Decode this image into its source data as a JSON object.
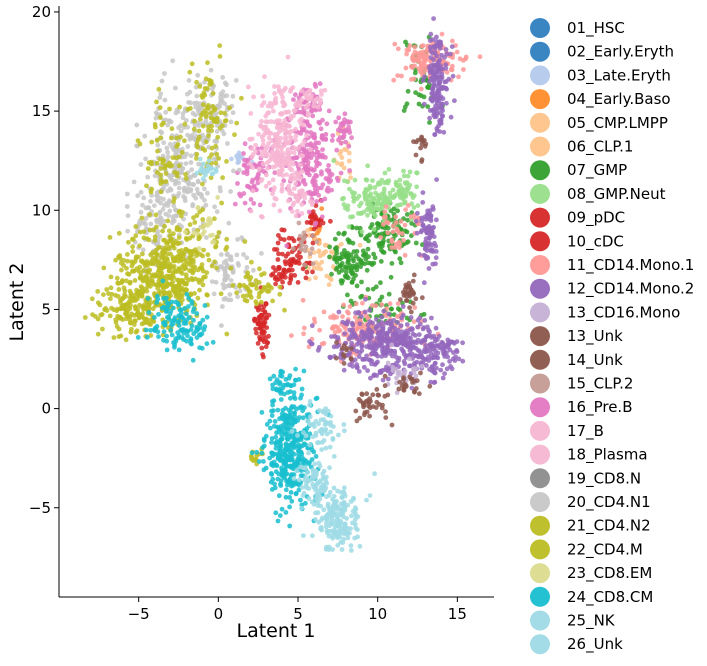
{
  "chart_data": {
    "type": "scatter",
    "title": "",
    "xlabel": "Latent 1",
    "ylabel": "Latent 2",
    "xlim": [
      -10,
      17.3
    ],
    "ylim": [
      -9.5,
      20.3
    ],
    "xticks": [
      -5,
      0,
      5,
      10,
      15
    ],
    "yticks": [
      -5,
      0,
      5,
      10,
      15,
      20
    ],
    "grid": false,
    "legend_position": "right",
    "series": [
      {
        "name": "01_HSC",
        "color": "#2f7fc0",
        "clusters": []
      },
      {
        "name": "02_Early.Eryth",
        "color": "#2f7fc0",
        "clusters": []
      },
      {
        "name": "03_Late.Eryth",
        "color": "#b4c9ed",
        "clusters": [
          [
            1.5,
            12.6,
            0.5,
            0.3,
            10
          ]
        ]
      },
      {
        "name": "04_Early.Baso",
        "color": "#ff8c2a",
        "clusters": [
          [
            6.2,
            9.2,
            0.5,
            0.6,
            15
          ]
        ]
      },
      {
        "name": "05_CMP.LMPP",
        "color": "#ffc38a",
        "clusters": [
          [
            6.5,
            7.4,
            0.9,
            0.9,
            40
          ]
        ]
      },
      {
        "name": "06_CLP.1",
        "color": "#ffc38a",
        "clusters": [
          [
            7.8,
            12.8,
            0.3,
            1.0,
            20
          ]
        ]
      },
      {
        "name": "07_GMP",
        "color": "#33a02c",
        "clusters": [
          [
            8.4,
            7.5,
            1.0,
            1.1,
            110
          ],
          [
            10.8,
            9.0,
            1.0,
            1.0,
            100
          ],
          [
            12.7,
            16.4,
            0.6,
            1.6,
            40
          ],
          [
            10.0,
            5.0,
            1.3,
            0.9,
            50
          ]
        ]
      },
      {
        "name": "08_GMP.Neut",
        "color": "#98df8a",
        "clusters": [
          [
            9.9,
            10.6,
            1.2,
            0.8,
            140
          ],
          [
            11.8,
            11.0,
            0.6,
            0.7,
            40
          ]
        ]
      },
      {
        "name": "09_pDC",
        "color": "#d62728",
        "clusters": [
          [
            2.8,
            4.2,
            0.3,
            0.9,
            60
          ],
          [
            4.6,
            7.7,
            0.8,
            1.0,
            60
          ],
          [
            6.2,
            9.6,
            0.5,
            0.5,
            25
          ]
        ]
      },
      {
        "name": "10_cDC",
        "color": "#d62728",
        "clusters": [
          [
            3.9,
            6.8,
            0.6,
            0.6,
            25
          ]
        ]
      },
      {
        "name": "11_CD14.Mono.1",
        "color": "#ff9896",
        "clusters": [
          [
            9.0,
            4.1,
            2.2,
            0.8,
            160
          ],
          [
            13.4,
            17.6,
            1.2,
            0.7,
            120
          ],
          [
            11.5,
            8.9,
            0.9,
            1.0,
            40
          ]
        ]
      },
      {
        "name": "12_CD14.Mono.2",
        "color": "#9467bd",
        "clusters": [
          [
            10.6,
            3.3,
            2.3,
            1.0,
            400
          ],
          [
            13.8,
            16.4,
            0.5,
            1.8,
            160
          ],
          [
            13.1,
            8.8,
            0.4,
            1.2,
            80
          ],
          [
            13.9,
            2.7,
            0.9,
            0.7,
            80
          ]
        ]
      },
      {
        "name": "13_CD16.Mono",
        "color": "#c5b0d5",
        "clusters": [
          [
            11.5,
            1.8,
            0.7,
            0.6,
            30
          ]
        ]
      },
      {
        "name": "13_Unk",
        "color": "#8c564b",
        "clusters": [
          [
            9.6,
            0.3,
            0.8,
            0.6,
            40
          ],
          [
            11.8,
            1.2,
            0.6,
            0.4,
            25
          ],
          [
            12.0,
            5.8,
            0.4,
            0.6,
            30
          ],
          [
            12.7,
            13.3,
            0.3,
            0.5,
            15
          ]
        ]
      },
      {
        "name": "14_Unk",
        "color": "#8c564b",
        "clusters": [
          [
            7.9,
            2.8,
            0.5,
            0.4,
            12
          ]
        ]
      },
      {
        "name": "15_CLP.2",
        "color": "#c49c94",
        "clusters": [
          [
            5.4,
            8.3,
            0.6,
            0.6,
            20
          ]
        ]
      },
      {
        "name": "16_Pre.B",
        "color": "#e377c2",
        "clusters": [
          [
            5.7,
            12.4,
            1.2,
            1.8,
            200
          ],
          [
            7.9,
            14.0,
            0.3,
            0.5,
            30
          ],
          [
            2.3,
            11.8,
            0.8,
            1.1,
            60
          ],
          [
            5.6,
            15.5,
            0.6,
            0.5,
            40
          ]
        ]
      },
      {
        "name": "17_B",
        "color": "#f7b6d2",
        "clusters": [
          [
            3.9,
            13.3,
            1.0,
            1.9,
            250
          ],
          [
            5.8,
            15.6,
            0.6,
            0.5,
            30
          ]
        ]
      },
      {
        "name": "18_Plasma",
        "color": "#f7b6d2",
        "clusters": [
          [
            5.0,
            10.6,
            0.5,
            0.6,
            30
          ]
        ]
      },
      {
        "name": "19_CD8.N",
        "color": "#8c8c8c",
        "clusters": []
      },
      {
        "name": "20_CD4.N1",
        "color": "#c7c7c7",
        "clusters": [
          [
            -2.5,
            12.2,
            1.5,
            2.7,
            260
          ],
          [
            -0.5,
            15.0,
            1.0,
            1.7,
            90
          ],
          [
            0.8,
            6.8,
            0.9,
            1.1,
            70
          ],
          [
            -4.2,
            9.5,
            1.2,
            1.5,
            90
          ]
        ]
      },
      {
        "name": "21_CD4.N2",
        "color": "#bcbd22",
        "clusters": [
          [
            -3.5,
            6.5,
            2.0,
            1.3,
            380
          ],
          [
            -5.5,
            5.0,
            1.5,
            0.9,
            140
          ],
          [
            -0.6,
            14.5,
            0.9,
            2.1,
            90
          ],
          [
            -3.4,
            12.8,
            1.0,
            1.8,
            60
          ],
          [
            2.1,
            6.2,
            0.9,
            0.7,
            50
          ]
        ]
      },
      {
        "name": "22_CD4.M",
        "color": "#bcbd22",
        "clusters": [
          [
            -2.2,
            8.0,
            1.8,
            1.3,
            130
          ],
          [
            2.2,
            -2.4,
            0.3,
            0.3,
            12
          ]
        ]
      },
      {
        "name": "23_CD8.EM",
        "color": "#dbdb8d",
        "clusters": [
          [
            -1.0,
            9.3,
            0.8,
            0.8,
            20
          ]
        ]
      },
      {
        "name": "24_CD8.CM",
        "color": "#17becf",
        "clusters": [
          [
            4.5,
            -2.0,
            1.1,
            1.9,
            360
          ],
          [
            -3.0,
            4.5,
            1.1,
            0.9,
            90
          ],
          [
            -1.5,
            3.8,
            0.8,
            0.7,
            40
          ],
          [
            4.0,
            1.2,
            0.5,
            0.6,
            35
          ]
        ]
      },
      {
        "name": "25_NK",
        "color": "#9edae5",
        "clusters": [
          [
            7.6,
            -5.6,
            0.9,
            1.0,
            160
          ],
          [
            6.0,
            -3.8,
            0.7,
            0.9,
            80
          ],
          [
            -0.8,
            12.0,
            0.6,
            0.4,
            20
          ]
        ]
      },
      {
        "name": "26_Unk",
        "color": "#9edae5",
        "clusters": [
          [
            6.5,
            -1.0,
            0.8,
            0.8,
            60
          ]
        ]
      }
    ]
  }
}
